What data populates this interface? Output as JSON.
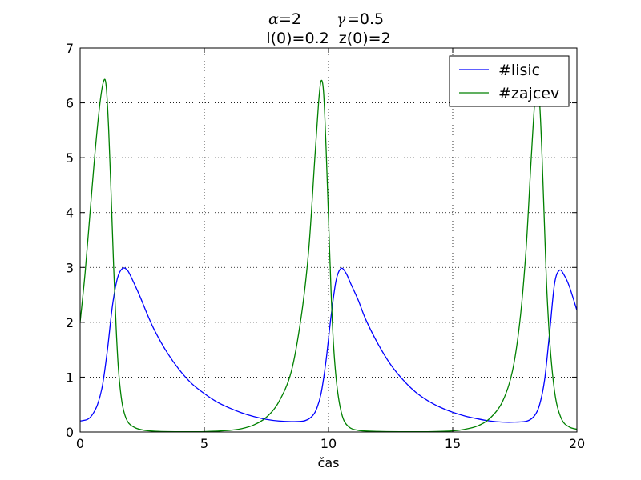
{
  "chart_data": {
    "type": "line",
    "title": {
      "line1": {
        "alpha_symbol": "α",
        "alpha_value": "=2",
        "gamma_symbol": "γ",
        "gamma_value": "=0.5"
      },
      "line2": "l(0)=0.2  z(0)=2"
    },
    "xlabel": "čas",
    "ylabel": "",
    "xlim": [
      0,
      20
    ],
    "ylim": [
      0,
      7
    ],
    "xticks": [
      0,
      5,
      10,
      15,
      20
    ],
    "yticks": [
      0,
      1,
      2,
      3,
      4,
      5,
      6,
      7
    ],
    "grid": true,
    "grid_style": "dotted",
    "legend_position": "top-right",
    "series": [
      {
        "name": "#lisic",
        "color": "#0000ff",
        "points": [
          [
            0,
            0.2
          ],
          [
            0.3,
            0.23
          ],
          [
            0.5,
            0.32
          ],
          [
            0.7,
            0.5
          ],
          [
            0.9,
            0.85
          ],
          [
            1.1,
            1.5
          ],
          [
            1.3,
            2.3
          ],
          [
            1.5,
            2.8
          ],
          [
            1.7,
            2.98
          ],
          [
            1.9,
            2.95
          ],
          [
            2.1,
            2.78
          ],
          [
            2.4,
            2.48
          ],
          [
            2.7,
            2.15
          ],
          [
            3.0,
            1.85
          ],
          [
            3.5,
            1.45
          ],
          [
            4.0,
            1.13
          ],
          [
            4.5,
            0.88
          ],
          [
            5.0,
            0.7
          ],
          [
            5.5,
            0.55
          ],
          [
            6.0,
            0.44
          ],
          [
            6.5,
            0.35
          ],
          [
            7.0,
            0.28
          ],
          [
            7.5,
            0.23
          ],
          [
            8.0,
            0.2
          ],
          [
            8.5,
            0.19
          ],
          [
            9.0,
            0.2
          ],
          [
            9.3,
            0.27
          ],
          [
            9.5,
            0.4
          ],
          [
            9.7,
            0.7
          ],
          [
            9.9,
            1.3
          ],
          [
            10.1,
            2.1
          ],
          [
            10.3,
            2.75
          ],
          [
            10.5,
            2.98
          ],
          [
            10.7,
            2.9
          ],
          [
            10.9,
            2.7
          ],
          [
            11.2,
            2.4
          ],
          [
            11.5,
            2.05
          ],
          [
            12.0,
            1.6
          ],
          [
            12.5,
            1.23
          ],
          [
            13.0,
            0.95
          ],
          [
            13.5,
            0.73
          ],
          [
            14.0,
            0.57
          ],
          [
            14.5,
            0.45
          ],
          [
            15.0,
            0.36
          ],
          [
            15.5,
            0.29
          ],
          [
            16.0,
            0.24
          ],
          [
            16.5,
            0.2
          ],
          [
            17.0,
            0.18
          ],
          [
            17.5,
            0.18
          ],
          [
            18.0,
            0.2
          ],
          [
            18.3,
            0.3
          ],
          [
            18.5,
            0.5
          ],
          [
            18.7,
            0.95
          ],
          [
            18.9,
            1.8
          ],
          [
            19.1,
            2.7
          ],
          [
            19.3,
            2.95
          ],
          [
            19.5,
            2.85
          ],
          [
            19.7,
            2.65
          ],
          [
            20.0,
            2.22
          ]
        ]
      },
      {
        "name": "#zajcev",
        "color": "#008000",
        "points": [
          [
            0,
            2.0
          ],
          [
            0.2,
            2.9
          ],
          [
            0.4,
            4.0
          ],
          [
            0.6,
            5.1
          ],
          [
            0.8,
            6.0
          ],
          [
            0.95,
            6.4
          ],
          [
            1.05,
            6.3
          ],
          [
            1.15,
            5.5
          ],
          [
            1.25,
            4.3
          ],
          [
            1.35,
            3.0
          ],
          [
            1.45,
            1.9
          ],
          [
            1.55,
            1.1
          ],
          [
            1.7,
            0.5
          ],
          [
            1.9,
            0.2
          ],
          [
            2.2,
            0.08
          ],
          [
            2.6,
            0.03
          ],
          [
            3.2,
            0.01
          ],
          [
            4.0,
            0.005
          ],
          [
            5.0,
            0.007
          ],
          [
            6.0,
            0.03
          ],
          [
            6.5,
            0.06
          ],
          [
            7.0,
            0.13
          ],
          [
            7.5,
            0.27
          ],
          [
            8.0,
            0.55
          ],
          [
            8.5,
            1.1
          ],
          [
            8.9,
            2.1
          ],
          [
            9.2,
            3.3
          ],
          [
            9.45,
            5.0
          ],
          [
            9.6,
            6.0
          ],
          [
            9.7,
            6.4
          ],
          [
            9.8,
            6.2
          ],
          [
            9.9,
            5.2
          ],
          [
            10.0,
            3.9
          ],
          [
            10.1,
            2.6
          ],
          [
            10.2,
            1.6
          ],
          [
            10.35,
            0.8
          ],
          [
            10.55,
            0.3
          ],
          [
            10.8,
            0.1
          ],
          [
            11.2,
            0.03
          ],
          [
            12.0,
            0.01
          ],
          [
            13.0,
            0.005
          ],
          [
            14.0,
            0.006
          ],
          [
            15.0,
            0.02
          ],
          [
            15.5,
            0.05
          ],
          [
            16.0,
            0.11
          ],
          [
            16.5,
            0.25
          ],
          [
            17.0,
            0.55
          ],
          [
            17.4,
            1.1
          ],
          [
            17.7,
            2.0
          ],
          [
            17.95,
            3.3
          ],
          [
            18.15,
            4.9
          ],
          [
            18.3,
            6.0
          ],
          [
            18.4,
            6.3
          ],
          [
            18.5,
            6.0
          ],
          [
            18.6,
            5.0
          ],
          [
            18.7,
            3.7
          ],
          [
            18.8,
            2.5
          ],
          [
            18.95,
            1.4
          ],
          [
            19.15,
            0.6
          ],
          [
            19.4,
            0.22
          ],
          [
            19.7,
            0.09
          ],
          [
            20.0,
            0.05
          ]
        ]
      }
    ]
  }
}
